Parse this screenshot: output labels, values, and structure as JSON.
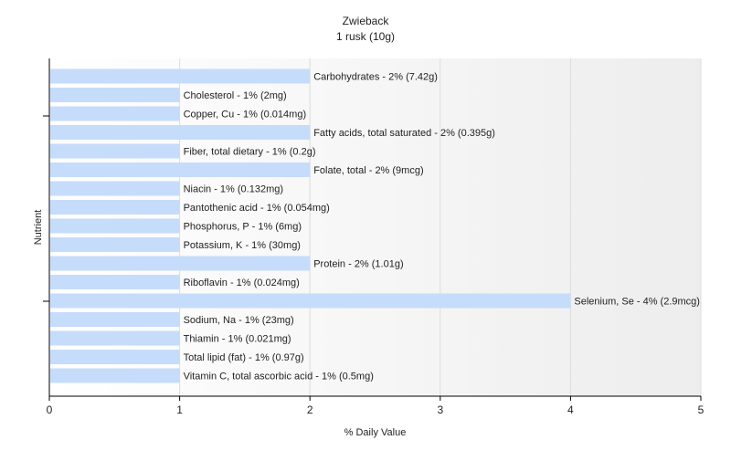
{
  "chart_data": {
    "type": "bar",
    "orientation": "horizontal",
    "title": "Zwieback",
    "subtitle": "1 rusk (10g)",
    "xlabel": "% Daily Value",
    "ylabel": "Nutrient",
    "xlim": [
      0,
      5
    ],
    "x_ticks": [
      0,
      1,
      2,
      3,
      4,
      5
    ],
    "grid": true,
    "bar_color": "#c6dcfb",
    "categories": [
      "Carbohydrates",
      "Cholesterol",
      "Copper, Cu",
      "Fatty acids, total saturated",
      "Fiber, total dietary",
      "Folate, total",
      "Niacin",
      "Pantothenic acid",
      "Phosphorus, P",
      "Potassium, K",
      "Protein",
      "Riboflavin",
      "Selenium, Se",
      "Sodium, Na",
      "Thiamin",
      "Total lipid (fat)",
      "Vitamin C, total ascorbic acid"
    ],
    "values": [
      2,
      1,
      1,
      2,
      1,
      2,
      1,
      1,
      1,
      1,
      2,
      1,
      4,
      1,
      1,
      1,
      1
    ],
    "labels": [
      "Carbohydrates - 2% (7.42g)",
      "Cholesterol - 1% (2mg)",
      "Copper, Cu - 1% (0.014mg)",
      "Fatty acids, total saturated - 2% (0.395g)",
      "Fiber, total dietary - 1% (0.2g)",
      "Folate, total - 2% (9mcg)",
      "Niacin - 1% (0.132mg)",
      "Pantothenic acid - 1% (0.054mg)",
      "Phosphorus, P - 1% (6mg)",
      "Potassium, K - 1% (30mg)",
      "Protein - 2% (1.01g)",
      "Riboflavin - 1% (0.024mg)",
      "Selenium, Se - 4% (2.9mcg)",
      "Sodium, Na - 1% (23mg)",
      "Thiamin - 1% (0.021mg)",
      "Total lipid (fat) - 1% (0.97g)",
      "Vitamin C, total ascorbic acid - 1% (0.5mg)"
    ]
  }
}
